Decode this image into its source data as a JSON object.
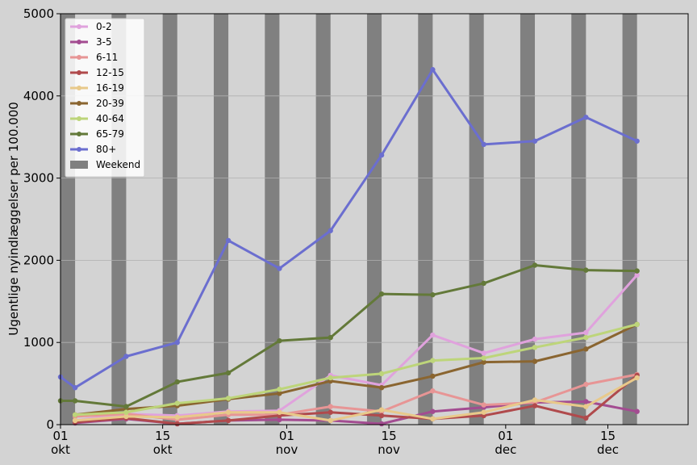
{
  "chart_data": {
    "type": "line",
    "title": "",
    "xlabel": "",
    "ylabel": "Ugentlige nyindlæggelser per 100.000",
    "ylim": [
      0,
      5000
    ],
    "yticks": [
      0,
      1000,
      2000,
      3000,
      4000,
      5000
    ],
    "xlim": [
      "2021-10-01",
      "2021-12-26"
    ],
    "xticks": [
      {
        "date": "2021-10-01",
        "day": "01",
        "month": "okt"
      },
      {
        "date": "2021-10-15",
        "day": "15",
        "month": "okt"
      },
      {
        "date": "2021-11-01",
        "day": "01",
        "month": "nov"
      },
      {
        "date": "2021-11-15",
        "day": "15",
        "month": "nov"
      },
      {
        "date": "2021-12-01",
        "day": "01",
        "month": "dec"
      },
      {
        "date": "2021-12-15",
        "day": "15",
        "month": "dec"
      }
    ],
    "grid": true,
    "legend_position": "top-left",
    "weekend_label": "Weekend",
    "weekend_color": "#808080",
    "weekends": [
      [
        "2021-10-01",
        "2021-10-03"
      ],
      [
        "2021-10-08",
        "2021-10-10"
      ],
      [
        "2021-10-15",
        "2021-10-17"
      ],
      [
        "2021-10-22",
        "2021-10-24"
      ],
      [
        "2021-10-29",
        "2021-10-31"
      ],
      [
        "2021-11-05",
        "2021-11-07"
      ],
      [
        "2021-11-12",
        "2021-11-14"
      ],
      [
        "2021-11-19",
        "2021-11-21"
      ],
      [
        "2021-11-26",
        "2021-11-28"
      ],
      [
        "2021-12-03",
        "2021-12-05"
      ],
      [
        "2021-12-10",
        "2021-12-12"
      ],
      [
        "2021-12-17",
        "2021-12-19"
      ]
    ],
    "x": [
      "2021-10-01",
      "2021-10-03",
      "2021-10-10",
      "2021-10-17",
      "2021-10-24",
      "2021-10-31",
      "2021-11-07",
      "2021-11-14",
      "2021-11-21",
      "2021-11-28",
      "2021-12-05",
      "2021-12-12",
      "2021-12-19"
    ],
    "series": [
      {
        "name": "0-2",
        "color": "#e0a2dd",
        "values": [
          null,
          50,
          130,
          110,
          160,
          170,
          600,
          480,
          1090,
          870,
          1040,
          1120,
          1820
        ]
      },
      {
        "name": "3-5",
        "color": "#a34c91",
        "values": [
          null,
          20,
          70,
          10,
          50,
          60,
          50,
          10,
          160,
          210,
          270,
          280,
          160
        ]
      },
      {
        "name": "6-11",
        "color": "#e79595",
        "values": [
          null,
          100,
          130,
          60,
          120,
          120,
          220,
          160,
          410,
          240,
          270,
          490,
          610
        ]
      },
      {
        "name": "12-15",
        "color": "#b04a4c",
        "values": [
          null,
          30,
          80,
          10,
          50,
          110,
          150,
          110,
          70,
          110,
          230,
          80,
          600
        ]
      },
      {
        "name": "16-19",
        "color": "#e8c98a",
        "values": [
          null,
          50,
          100,
          90,
          150,
          150,
          50,
          180,
          70,
          150,
          300,
          220,
          570
        ]
      },
      {
        "name": "20-39",
        "color": "#8a6530",
        "values": [
          null,
          120,
          190,
          230,
          310,
          380,
          530,
          450,
          590,
          760,
          770,
          920,
          1220
        ]
      },
      {
        "name": "40-64",
        "color": "#bdd57a",
        "values": [
          null,
          120,
          150,
          260,
          320,
          430,
          570,
          620,
          780,
          810,
          940,
          1060,
          1220
        ]
      },
      {
        "name": "65-79",
        "color": "#637939",
        "values": [
          290,
          290,
          220,
          520,
          630,
          1020,
          1060,
          1590,
          1580,
          1720,
          1940,
          1880,
          1870
        ]
      },
      {
        "name": "80+",
        "color": "#6b6ecf",
        "values": [
          580,
          450,
          830,
          1000,
          2240,
          1900,
          2360,
          3280,
          4320,
          3410,
          3450,
          3740,
          3450
        ]
      }
    ]
  }
}
